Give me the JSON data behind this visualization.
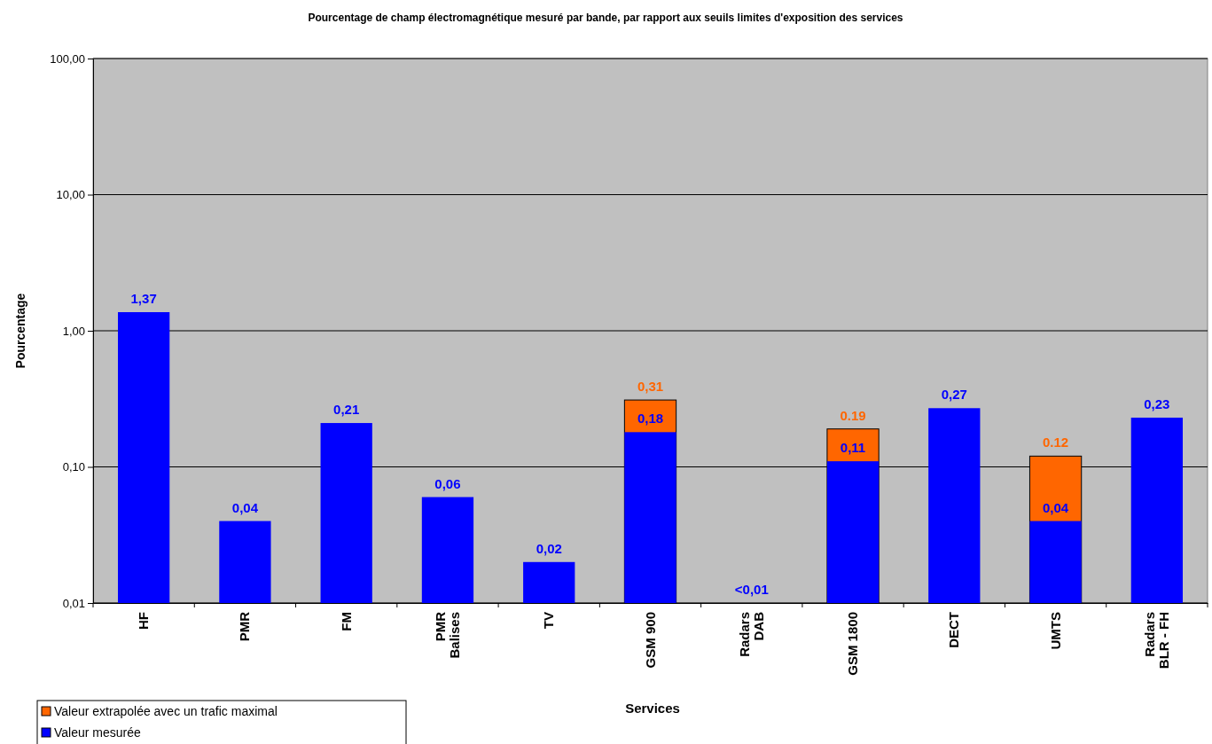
{
  "chart_data": {
    "type": "bar",
    "title": "Pourcentage de champ électromagnétique mesuré par bande, par rapport aux seuils limites d'exposition des services",
    "xlabel": "Services",
    "ylabel": "Pourcentage",
    "categories": [
      "HF",
      "PMR",
      "FM",
      "PMR\nBalises",
      "TV",
      "GSM 900",
      "Radars\nDAB",
      "GSM 1800",
      "DECT",
      "UMTS",
      "Radars\nBLR - FH"
    ],
    "series": [
      {
        "name": "Valeur extrapolée avec un trafic maximal",
        "color": "#ff6600",
        "values": [
          null,
          null,
          null,
          null,
          null,
          0.31,
          null,
          0.19,
          null,
          0.12,
          null
        ],
        "value_labels": [
          null,
          null,
          null,
          null,
          null,
          "0,31",
          null,
          "0.19",
          null,
          "0.12",
          null
        ]
      },
      {
        "name": "Valeur mesurée",
        "color": "#0000ff",
        "values": [
          1.37,
          0.04,
          0.21,
          0.06,
          0.02,
          0.18,
          null,
          0.11,
          0.27,
          0.04,
          0.23
        ],
        "value_labels": [
          "1,37",
          "0,04",
          "0,21",
          "0,06",
          "0,02",
          "0,18",
          "<0,01",
          "0,11",
          "0,27",
          "0,04",
          "0,23"
        ]
      }
    ],
    "log": true,
    "ylim": [
      0.01,
      100
    ],
    "yticks": [
      {
        "value": 0.01,
        "label": "0,01"
      },
      {
        "value": 0.1,
        "label": "0,10"
      },
      {
        "value": 1,
        "label": "1,00"
      },
      {
        "value": 10,
        "label": "10,00"
      },
      {
        "value": 100,
        "label": "100,00"
      }
    ],
    "grid": "y",
    "legend": "bottom left"
  }
}
